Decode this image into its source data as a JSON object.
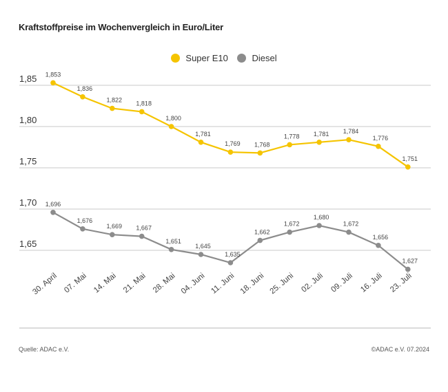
{
  "chart_data": {
    "type": "line",
    "title": "Kraftstoffpreise im Wochenvergleich in Euro/Liter",
    "categories": [
      "30. April",
      "07. Mai",
      "14. Mai",
      "21. Mai",
      "28. Mai",
      "04. Juni",
      "11. Juni",
      "18. Juni",
      "25. Juni",
      "02. Juli",
      "09. Juli",
      "16. Juli",
      "23. Juli"
    ],
    "series": [
      {
        "name": "Super E10",
        "color": "#f5c400",
        "values": [
          1.853,
          1.836,
          1.822,
          1.818,
          1.8,
          1.781,
          1.769,
          1.768,
          1.778,
          1.781,
          1.784,
          1.776,
          1.751
        ]
      },
      {
        "name": "Diesel",
        "color": "#8c8c8c",
        "values": [
          1.696,
          1.676,
          1.669,
          1.667,
          1.651,
          1.645,
          1.635,
          1.662,
          1.672,
          1.68,
          1.672,
          1.656,
          1.627
        ]
      }
    ],
    "yticks": [
      1.85,
      1.8,
      1.75,
      1.7,
      1.65
    ],
    "ytick_labels": [
      "1,85",
      "1,80",
      "1,75",
      "1,70",
      "1,65"
    ],
    "legend_position": "top-center",
    "grid": true
  },
  "footer": {
    "source": "Quelle: ADAC e.V.",
    "copyright": "©ADAC e.V. 07.2024"
  }
}
